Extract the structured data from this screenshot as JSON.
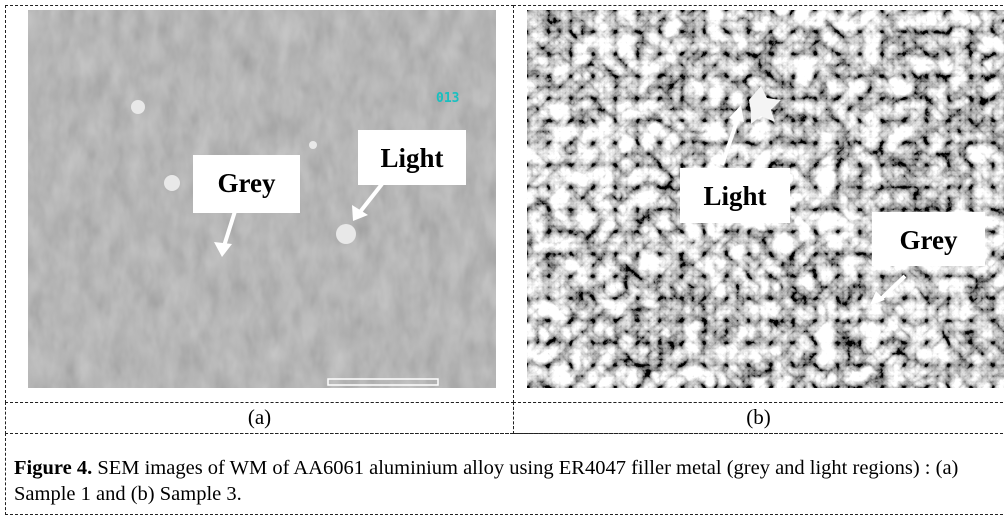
{
  "figure": {
    "panels": [
      {
        "label": "(a)",
        "annotations": [
          "Grey",
          "Light"
        ],
        "image_text": "013"
      },
      {
        "label": "(b)",
        "annotations": [
          "Light",
          "Grey"
        ]
      }
    ],
    "caption": {
      "label": "Figure 4.",
      "text": "SEM images of WM of AA6061 aluminium alloy using ER4047 filler metal (grey and light regions) : (a) Sample 1 and (b) Sample 3."
    }
  }
}
